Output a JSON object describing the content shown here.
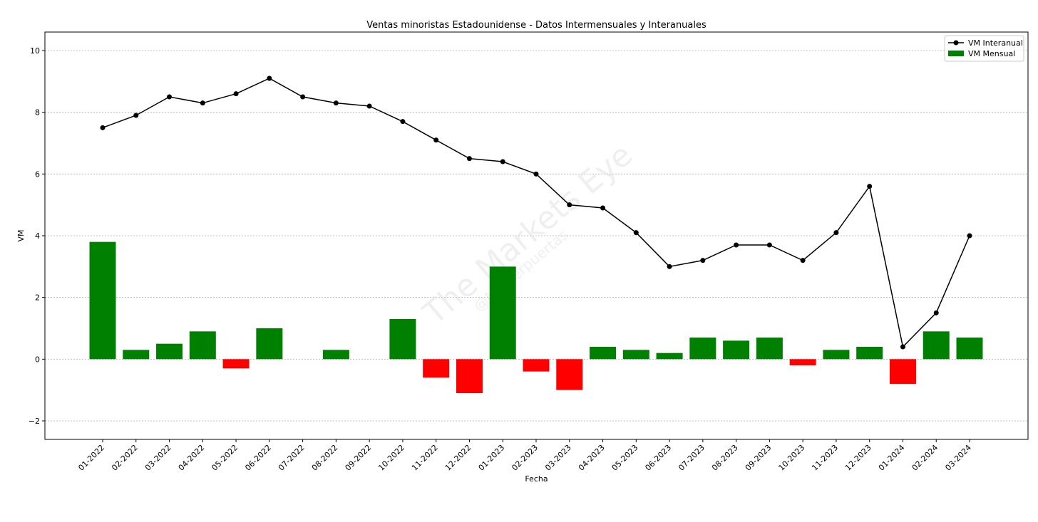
{
  "chart_data": {
    "type": "bar",
    "title": "Ventas minoristas Estadounidense - Datos Intermensuales y Interanuales",
    "xlabel": "Fecha",
    "ylabel": "VM",
    "ylim": [
      -2.6,
      10.6
    ],
    "yticks": [
      -2,
      0,
      2,
      4,
      6,
      8,
      10
    ],
    "ytick_labels": [
      "−2",
      "0",
      "2",
      "4",
      "6",
      "8",
      "10"
    ],
    "grid": "horizontal dotted",
    "legend_position": "top-right",
    "categories": [
      "01-2022",
      "02-2022",
      "03-2022",
      "04-2022",
      "05-2022",
      "06-2022",
      "07-2022",
      "08-2022",
      "09-2022",
      "10-2022",
      "11-2022",
      "12-2022",
      "01-2023",
      "02-2023",
      "03-2023",
      "04-2023",
      "05-2023",
      "06-2023",
      "07-2023",
      "08-2023",
      "09-2023",
      "10-2023",
      "11-2023",
      "12-2023",
      "01-2024",
      "02-2024",
      "03-2024"
    ],
    "series": [
      {
        "name": "VM Interanual",
        "type": "line",
        "color": "#000000",
        "values": [
          7.5,
          7.9,
          8.5,
          8.3,
          8.6,
          9.1,
          8.5,
          8.3,
          8.2,
          7.7,
          7.1,
          6.5,
          6.4,
          6.0,
          5.0,
          4.9,
          4.1,
          3.0,
          3.2,
          3.7,
          3.7,
          3.2,
          4.1,
          5.6,
          0.4,
          1.5,
          4.0
        ]
      },
      {
        "name": "VM Mensual",
        "type": "bar",
        "positive_color": "#008000",
        "negative_color": "#ff0000",
        "values": [
          3.8,
          0.3,
          0.5,
          0.9,
          -0.3,
          1.0,
          0.0,
          0.3,
          0.0,
          1.3,
          -0.6,
          -1.1,
          3.0,
          -0.4,
          -1.0,
          0.4,
          0.3,
          0.2,
          0.7,
          0.6,
          0.7,
          -0.2,
          0.3,
          0.4,
          -0.8,
          0.9,
          0.7
        ]
      }
    ],
    "watermark": "The Markets Eye",
    "watermark_sub": "@Masterpuertas"
  }
}
